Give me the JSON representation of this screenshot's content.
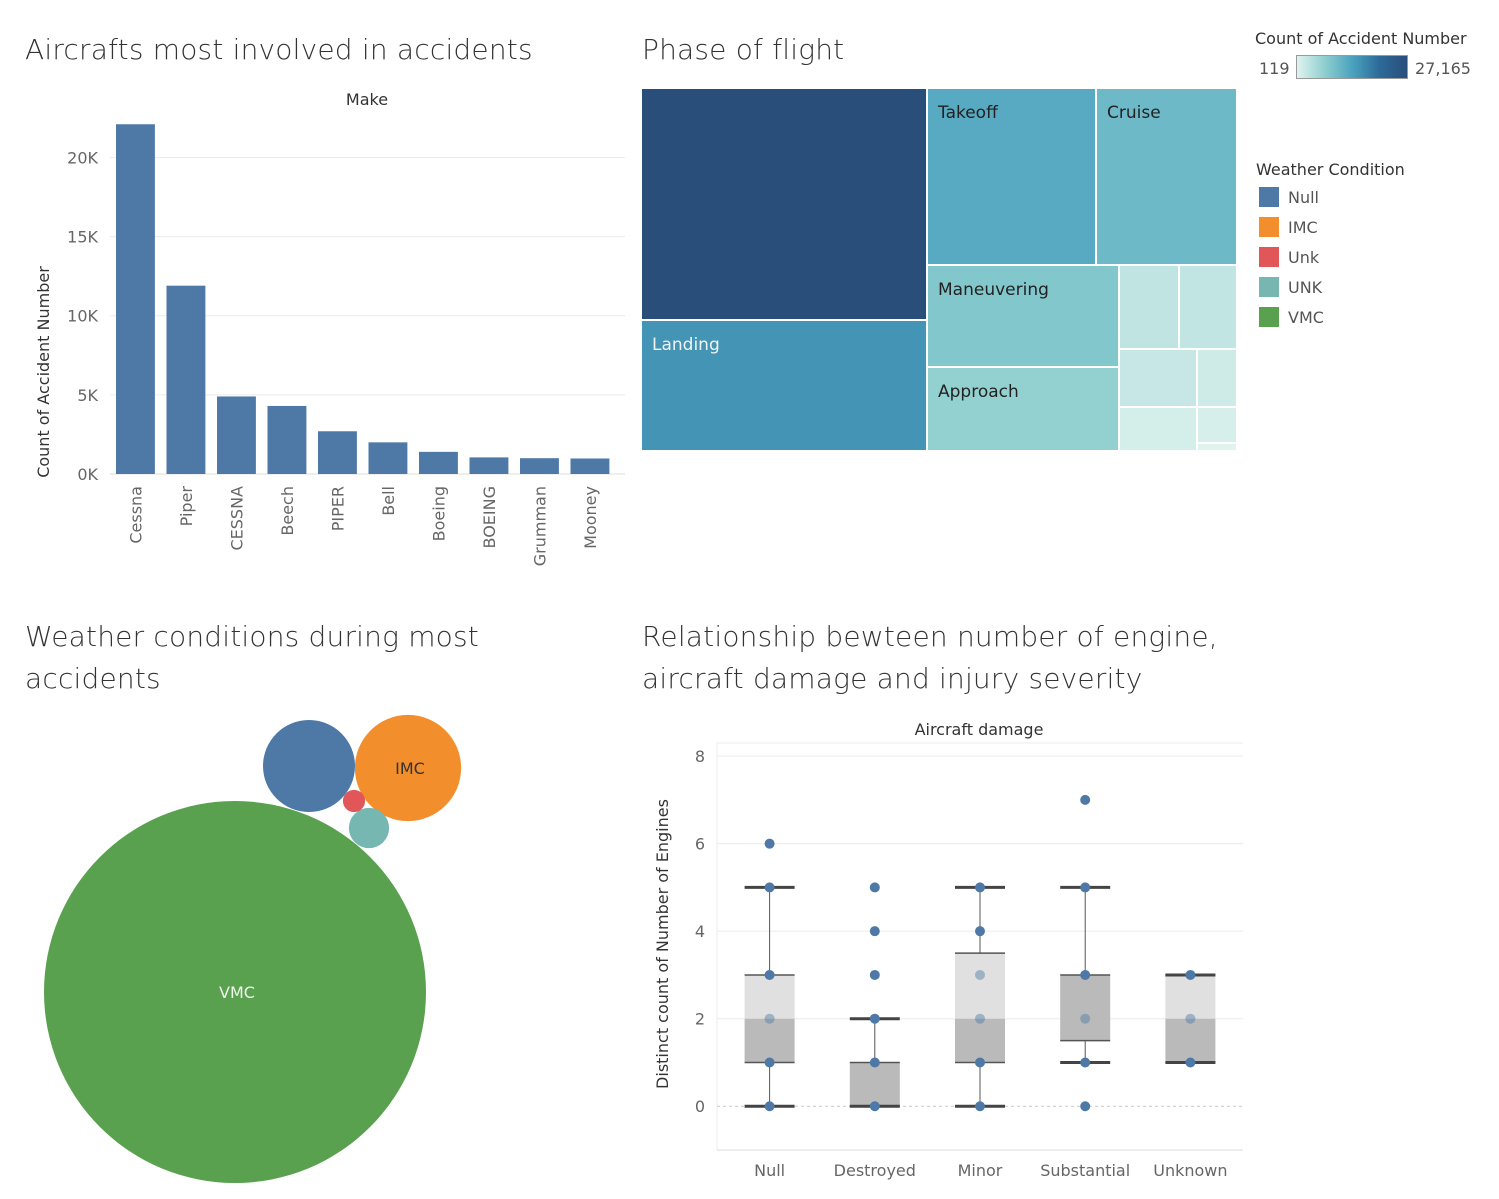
{
  "charts": {
    "make": {
      "title": "Aircrafts most involved in accidents",
      "header": "Make",
      "ylabel": "Count of Accident Number"
    },
    "phase": {
      "title": "Phase of flight"
    },
    "weather": {
      "title_line1": "Weather conditions during most",
      "title_line2": "accidents"
    },
    "engines": {
      "title_line1": "Relationship bewteen number of engine,",
      "title_line2": "aircraft damage and injury severity",
      "header": "Aircraft damage",
      "ylabel": "Distinct count of Number of Engines"
    }
  },
  "color_legend": {
    "title": "Count of Accident Number",
    "min_label": "119",
    "max_label": "27,165"
  },
  "weather_legend": {
    "title": "Weather Condition",
    "items": [
      {
        "label": "Null",
        "color": "#4e79a7"
      },
      {
        "label": "IMC",
        "color": "#f28e2b"
      },
      {
        "label": "Unk",
        "color": "#e15759"
      },
      {
        "label": "UNK",
        "color": "#76b7b2"
      },
      {
        "label": "VMC",
        "color": "#59a14f"
      }
    ]
  },
  "chart_data": [
    {
      "type": "bar",
      "title": "Aircrafts most involved in accidents",
      "header": "Make",
      "ylabel": "Count of Accident Number",
      "categories": [
        "Cessna",
        "Piper",
        "CESSNA",
        "Beech",
        "PIPER",
        "Bell",
        "Boeing",
        "BOEING",
        "Grumman",
        "Mooney"
      ],
      "values": [
        22100,
        11900,
        4900,
        4300,
        2700,
        2000,
        1400,
        1050,
        1000,
        980
      ],
      "yticks": [
        0,
        5000,
        10000,
        15000,
        20000
      ],
      "ytick_labels": [
        "0K",
        "5K",
        "10K",
        "15K",
        "20K"
      ],
      "ylim": [
        0,
        23000
      ],
      "color": "#4e79a7",
      "grid": true
    },
    {
      "type": "treemap",
      "title": "Phase of flight",
      "color_scale": {
        "min": 119,
        "max": 27165,
        "min_label": "119",
        "max_label": "27,165"
      },
      "cells": [
        {
          "label": "",
          "value": 27165
        },
        {
          "label": "Landing",
          "value": 15428
        },
        {
          "label": "Takeoff",
          "value": 12493
        },
        {
          "label": "Cruise",
          "value": 10269
        },
        {
          "label": "Maneuvering",
          "value": 8144
        },
        {
          "label": "Approach",
          "value": 6546
        },
        {
          "label": "",
          "value": 2900
        },
        {
          "label": "",
          "value": 2700
        },
        {
          "label": "",
          "value": 2300
        },
        {
          "label": "",
          "value": 1600
        },
        {
          "label": "",
          "value": 1100
        },
        {
          "label": "",
          "value": 900
        },
        {
          "label": "",
          "value": 119
        }
      ]
    },
    {
      "type": "bubble",
      "title": "Weather conditions during most accidents",
      "series": [
        {
          "name": "VMC",
          "value": 77303,
          "color": "#59a14f",
          "label": "VMC"
        },
        {
          "name": "Null",
          "value": 4492,
          "color": "#4e79a7",
          "label": ""
        },
        {
          "name": "IMC",
          "value": 5976,
          "color": "#f28e2b",
          "label": "IMC"
        },
        {
          "name": "UNK",
          "value": 856,
          "color": "#76b7b2",
          "label": ""
        },
        {
          "name": "Unk",
          "value": 262,
          "color": "#e15759",
          "label": ""
        }
      ]
    },
    {
      "type": "box",
      "title": "Relationship bewteen number of engine, aircraft damage and injury severity",
      "header": "Aircraft damage",
      "ylabel": "Distinct count of Number of Engines",
      "categories": [
        "Null",
        "Destroyed",
        "Minor",
        "Substantial",
        "Unknown"
      ],
      "yticks": [
        0,
        2,
        4,
        6,
        8
      ],
      "ylim": [
        -1,
        8.3
      ],
      "boxes": [
        {
          "q1": 1,
          "median": 2,
          "q3": 3,
          "whisker_low": 0,
          "whisker_high": 5,
          "points": [
            0,
            1,
            2,
            3,
            5,
            6
          ]
        },
        {
          "q1": 0,
          "median": 1,
          "q3": 1,
          "whisker_low": 0,
          "whisker_high": 2,
          "points": [
            0,
            1,
            2,
            3,
            4,
            5
          ]
        },
        {
          "q1": 1,
          "median": 2,
          "q3": 3.5,
          "whisker_low": 0,
          "whisker_high": 5,
          "points": [
            0,
            1,
            2,
            3,
            4,
            5
          ]
        },
        {
          "q1": 1.5,
          "median": 3,
          "q3": 3,
          "whisker_low": 1,
          "whisker_high": 5,
          "points": [
            0,
            1,
            2,
            3,
            5,
            7
          ]
        },
        {
          "q1": 1,
          "median": 2,
          "q3": 3,
          "whisker_low": 1,
          "whisker_high": 3,
          "points": [
            1,
            2,
            3
          ]
        }
      ]
    }
  ]
}
